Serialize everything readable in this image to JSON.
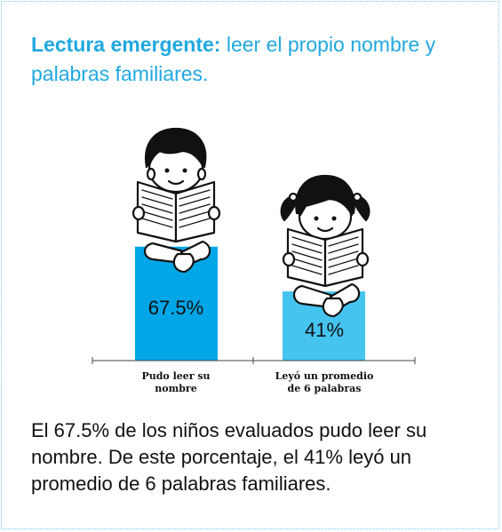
{
  "title": {
    "bold": "Lectura emergente:",
    "rest": "leer el propio nombre y palabras familiares."
  },
  "chart_data": {
    "type": "bar",
    "categories": [
      [
        "Pudo leer su",
        "nombre"
      ],
      [
        "Leyó un promedio",
        "de  6 palabras"
      ]
    ],
    "values": [
      67.5,
      41
    ],
    "value_labels": [
      "67.5%",
      "41%"
    ],
    "ylim": [
      0,
      100
    ],
    "grid": false,
    "colors": [
      "#00a6e6",
      "#45c4ef"
    ]
  },
  "caption": "El 67.5% de los niños evaluados pudo leer su nombre. De este porcentaje, el 41% leyó un promedio de 6 palabras familiares.",
  "illustrations": [
    "boy-reading-book-icon",
    "girl-reading-book-icon"
  ]
}
